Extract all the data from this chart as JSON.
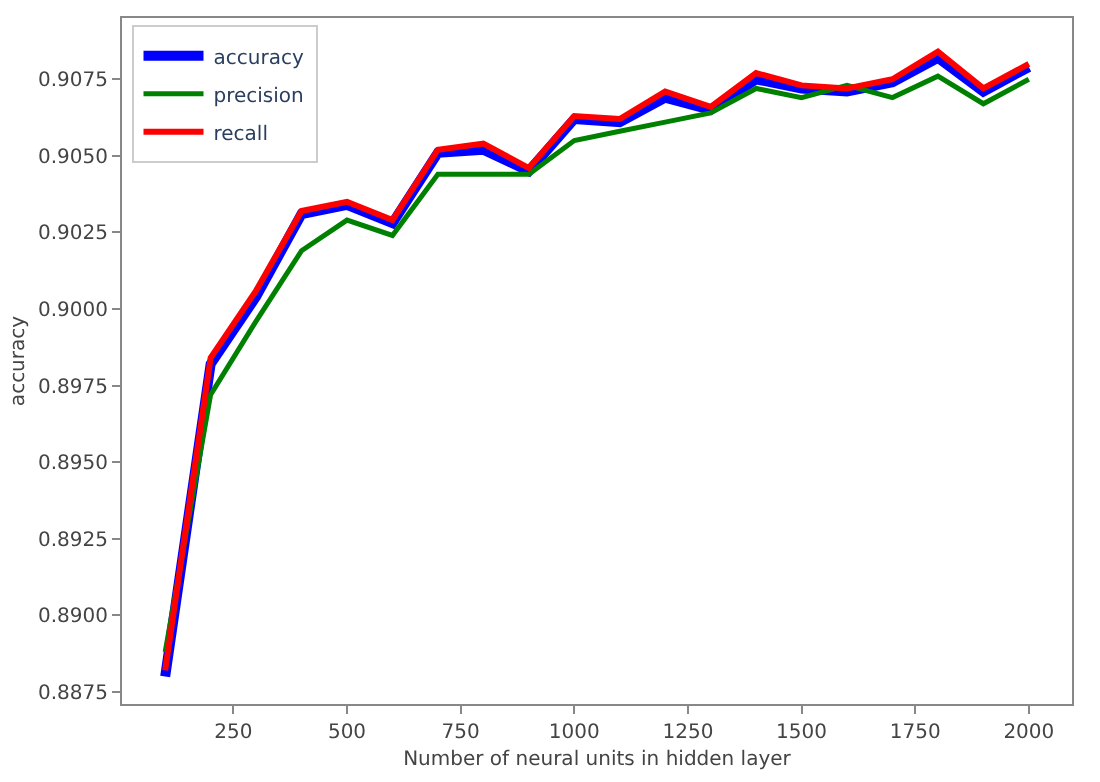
{
  "chart_data": {
    "type": "line",
    "xlabel": "Number of neural units in hidden layer",
    "ylabel": "accuracy",
    "x": [
      100,
      200,
      300,
      400,
      500,
      600,
      700,
      800,
      900,
      1000,
      1100,
      1200,
      1300,
      1400,
      1500,
      1600,
      1700,
      1800,
      1900,
      2000
    ],
    "series": [
      {
        "name": "accuracy",
        "color": "#0000ff",
        "values": [
          0.888,
          0.8982,
          0.9004,
          0.9031,
          0.9034,
          0.9028,
          0.9051,
          0.9052,
          0.9045,
          0.9062,
          0.9061,
          0.9069,
          0.9065,
          0.9075,
          0.9072,
          0.9071,
          0.9074,
          0.9082,
          0.9071,
          0.9079
        ]
      },
      {
        "name": "precision",
        "color": "#008000",
        "values": [
          0.8888,
          0.8972,
          0.8996,
          0.9019,
          0.9029,
          0.9024,
          0.9044,
          0.9044,
          0.9044,
          0.9055,
          0.9058,
          0.9061,
          0.9064,
          0.9072,
          0.9069,
          0.9073,
          0.9069,
          0.9076,
          0.9067,
          0.9075
        ]
      },
      {
        "name": "recall",
        "color": "#ff0000",
        "values": [
          0.8882,
          0.8984,
          0.9006,
          0.9032,
          0.9035,
          0.9029,
          0.9052,
          0.9054,
          0.9046,
          0.9063,
          0.9062,
          0.9071,
          0.9066,
          0.9077,
          0.9073,
          0.9072,
          0.9075,
          0.9084,
          0.9072,
          0.908
        ]
      }
    ],
    "xlim": [
      5,
      2095
    ],
    "xticks": [
      250,
      500,
      750,
      1000,
      1250,
      1500,
      1750,
      2000
    ],
    "ylim": [
      0.8871,
      0.9095
    ],
    "yticks": [
      0.8875,
      {
        "value": 0.89,
        "label": "0.8900"
      },
      0.8925,
      {
        "value": 0.895,
        "label": "0.8950"
      },
      0.8975,
      {
        "value": 0.9,
        "label": "0.9000"
      },
      0.9025,
      {
        "value": 0.905,
        "label": "0.9050"
      },
      0.9075
    ],
    "legend": "top left",
    "marker": "none",
    "line_style": "solid"
  }
}
